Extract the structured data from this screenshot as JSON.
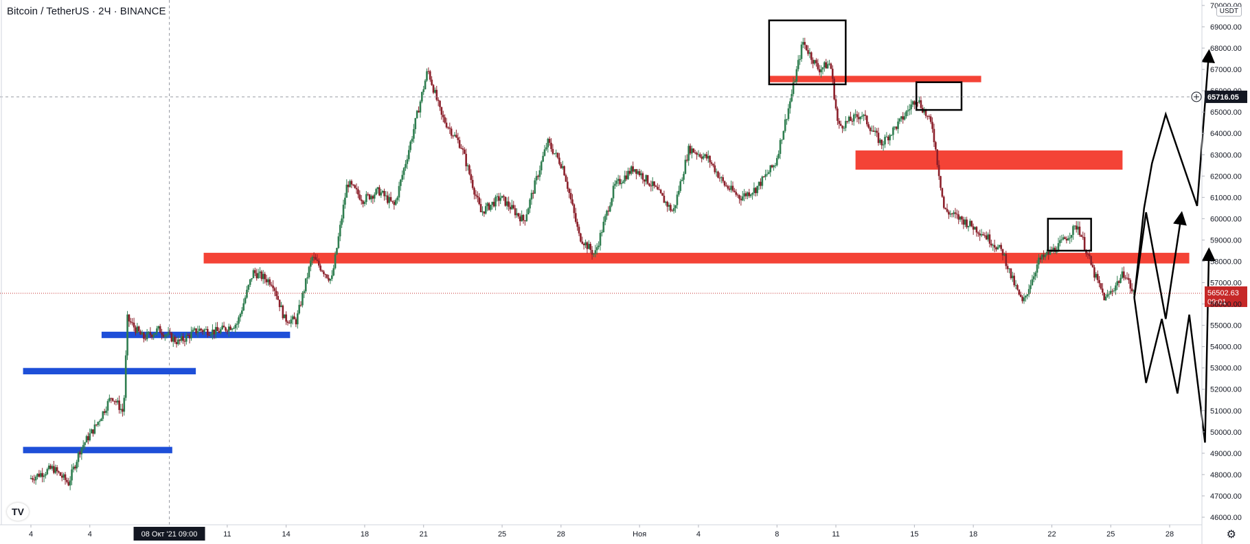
{
  "header": {
    "title": "Bitcoin / TetherUS · 2Ч · BINANCE"
  },
  "axis": {
    "unit": "USDT"
  },
  "logo": "TV",
  "icons": {
    "settings": "gear-icon",
    "crosshair": "crosshair-plus-icon"
  },
  "colors": {
    "resistance": "#f44336",
    "support": "#1e4fd8",
    "candle_up": "#2e7d4f",
    "candle_down": "#8b1f2a"
  },
  "chart_data": {
    "type": "candlestick",
    "title": "Bitcoin / TetherUS · 2Ч · BINANCE",
    "ylim": [
      45500,
      70000
    ],
    "y_ticks": [
      46000,
      47000,
      48000,
      49000,
      50000,
      51000,
      52000,
      53000,
      54000,
      55000,
      56000,
      57000,
      58000,
      59000,
      60000,
      61000,
      62000,
      63000,
      64000,
      65000,
      66000,
      67000,
      68000,
      69000,
      70000
    ],
    "y_tick_labels": [
      "46000.00",
      "47000.00",
      "48000.00",
      "49000.00",
      "50000.00",
      "51000.00",
      "52000.00",
      "53000.00",
      "54000.00",
      "55000.00",
      "56000.00",
      "57000.00",
      "58000.00",
      "59000.00",
      "60000.00",
      "61000.00",
      "62000.00",
      "63000.00",
      "64000.00",
      "65000.00",
      "66000.00",
      "67000.00",
      "68000.00",
      "69000.00",
      "70000.00"
    ],
    "x_ticks": [
      {
        "label": "4",
        "day": 0
      },
      {
        "label": "4",
        "day": 3
      },
      {
        "label": "11",
        "day": 10
      },
      {
        "label": "14",
        "day": 13
      },
      {
        "label": "18",
        "day": 17
      },
      {
        "label": "21",
        "day": 20
      },
      {
        "label": "25",
        "day": 24
      },
      {
        "label": "28",
        "day": 27
      },
      {
        "label": "Ноя",
        "day": 31
      },
      {
        "label": "4",
        "day": 34
      },
      {
        "label": "8",
        "day": 38
      },
      {
        "label": "11",
        "day": 41
      },
      {
        "label": "15",
        "day": 45
      },
      {
        "label": "18",
        "day": 48
      },
      {
        "label": "22",
        "day": 52
      },
      {
        "label": "25",
        "day": 55
      },
      {
        "label": "28",
        "day": 58
      }
    ],
    "x_range_days": [
      -0.4,
      60
    ],
    "cursor_label": "08 Окт '21  09:00",
    "cursor_day": 7.05,
    "last_price": {
      "value": 56502.63,
      "label": "56502.63",
      "countdown": "09:01"
    },
    "crosshair_price": {
      "value": 65716.05,
      "label": "65716.05"
    },
    "path": [
      [
        0,
        47800
      ],
      [
        1.2,
        48300
      ],
      [
        2,
        47600
      ],
      [
        2.6,
        49200
      ],
      [
        3.4,
        50300
      ],
      [
        4.2,
        51700
      ],
      [
        4.8,
        50900
      ],
      [
        5.0,
        55300
      ],
      [
        5.8,
        54400
      ],
      [
        6.6,
        54800
      ],
      [
        7.6,
        54200
      ],
      [
        8.6,
        54800
      ],
      [
        9.6,
        54700
      ],
      [
        10.6,
        55100
      ],
      [
        11.4,
        57500
      ],
      [
        12.4,
        57000
      ],
      [
        13.0,
        55300
      ],
      [
        13.6,
        55200
      ],
      [
        14.4,
        58200
      ],
      [
        15.4,
        57100
      ],
      [
        16.2,
        61700
      ],
      [
        17.0,
        60900
      ],
      [
        17.8,
        61300
      ],
      [
        18.6,
        60600
      ],
      [
        19.4,
        63500
      ],
      [
        20.3,
        67000
      ],
      [
        21.0,
        64800
      ],
      [
        22.0,
        63400
      ],
      [
        23.0,
        60300
      ],
      [
        24.0,
        61000
      ],
      [
        25.2,
        59900
      ],
      [
        26.4,
        63600
      ],
      [
        27.2,
        62400
      ],
      [
        28.0,
        59200
      ],
      [
        28.8,
        58300
      ],
      [
        29.8,
        61500
      ],
      [
        30.8,
        62400
      ],
      [
        31.8,
        61500
      ],
      [
        32.8,
        60300
      ],
      [
        33.6,
        63300
      ],
      [
        34.6,
        62800
      ],
      [
        35.4,
        61600
      ],
      [
        36.2,
        61000
      ],
      [
        37.0,
        61400
      ],
      [
        38.0,
        62600
      ],
      [
        38.8,
        65700
      ],
      [
        39.4,
        68300
      ],
      [
        40.2,
        67000
      ],
      [
        40.8,
        67300
      ],
      [
        41.2,
        64300
      ],
      [
        42.4,
        64900
      ],
      [
        43.4,
        63500
      ],
      [
        44.4,
        64600
      ],
      [
        45.2,
        65700
      ],
      [
        46.0,
        64300
      ],
      [
        46.6,
        60400
      ],
      [
        47.6,
        59900
      ],
      [
        48.6,
        59300
      ],
      [
        49.6,
        58400
      ],
      [
        50.0,
        57300
      ],
      [
        50.6,
        56000
      ],
      [
        51.4,
        58000
      ],
      [
        52.4,
        58700
      ],
      [
        53.4,
        59700
      ],
      [
        54.2,
        57500
      ],
      [
        54.8,
        56200
      ],
      [
        55.8,
        57500
      ],
      [
        56.2,
        56500
      ]
    ],
    "zones": [
      {
        "kind": "resistance",
        "start_day": 8.8,
        "end_day": 59.0,
        "low": 57900,
        "high": 58400
      },
      {
        "kind": "resistance",
        "start_day": 37.6,
        "end_day": 48.4,
        "low": 66400,
        "high": 66700
      },
      {
        "kind": "resistance",
        "start_day": 42.0,
        "end_day": 55.6,
        "low": 62300,
        "high": 63200
      },
      {
        "kind": "support",
        "start_day": 3.6,
        "end_day": 13.2,
        "low": 54400,
        "high": 54700
      },
      {
        "kind": "support",
        "start_day": -0.4,
        "end_day": 8.4,
        "low": 52700,
        "high": 53000
      },
      {
        "kind": "support",
        "start_day": -0.4,
        "end_day": 7.2,
        "low": 49000,
        "high": 49300
      }
    ],
    "boxes": [
      {
        "start_day": 37.6,
        "end_day": 41.5,
        "low": 66300,
        "high": 69300
      },
      {
        "start_day": 45.1,
        "end_day": 47.4,
        "low": 65100,
        "high": 66400
      },
      {
        "start_day": 51.8,
        "end_day": 54.0,
        "low": 58500,
        "high": 60000
      }
    ],
    "scenarios": [
      [
        [
          56.2,
          56300
        ],
        [
          56.7,
          60500
        ],
        [
          57.1,
          62600
        ],
        [
          57.8,
          64900
        ],
        [
          59.4,
          60600
        ],
        [
          60.0,
          67800
        ]
      ],
      [
        [
          56.2,
          56300
        ],
        [
          56.8,
          60300
        ],
        [
          57.8,
          55300
        ],
        [
          58.6,
          60200
        ]
      ],
      [
        [
          56.2,
          56300
        ],
        [
          56.8,
          52300
        ],
        [
          57.6,
          55300
        ],
        [
          58.4,
          51800
        ],
        [
          59.0,
          55500
        ],
        [
          59.8,
          49500
        ],
        [
          60.0,
          58500
        ]
      ]
    ]
  }
}
